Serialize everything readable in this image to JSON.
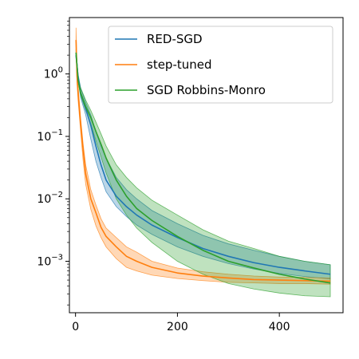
{
  "chart_data": {
    "type": "line",
    "title": "",
    "xlabel": "",
    "ylabel": "",
    "yscale": "log",
    "xlim": [
      -12,
      525
    ],
    "ylim": [
      0.00015,
      8
    ],
    "x_ticks": [
      0,
      200,
      400
    ],
    "x_tick_labels": [
      "0",
      "200",
      "400"
    ],
    "y_ticks": [
      1,
      0.1,
      0.01,
      0.001
    ],
    "y_tick_labels": [
      {
        "base": "10",
        "exp": "0"
      },
      {
        "base": "10",
        "exp": "−1"
      },
      {
        "base": "10",
        "exp": "−2"
      },
      {
        "base": "10",
        "exp": "−3"
      }
    ],
    "grid": false,
    "legend_position": "top-right",
    "series": [
      {
        "name": "RED-SGD",
        "color": "#1f77b4",
        "x": [
          1,
          5,
          10,
          20,
          30,
          40,
          50,
          60,
          80,
          100,
          120,
          150,
          200,
          250,
          300,
          350,
          400,
          450,
          500
        ],
        "mean": [
          2.0,
          0.9,
          0.5,
          0.28,
          0.15,
          0.07,
          0.035,
          0.02,
          0.011,
          0.0075,
          0.0055,
          0.0038,
          0.0024,
          0.0016,
          0.0012,
          0.00095,
          0.0008,
          0.0007,
          0.00062
        ],
        "lower": [
          1.8,
          0.8,
          0.42,
          0.22,
          0.09,
          0.04,
          0.022,
          0.013,
          0.0075,
          0.0052,
          0.0038,
          0.0027,
          0.0017,
          0.0012,
          0.00092,
          0.00075,
          0.00064,
          0.00057,
          0.00052
        ],
        "upper": [
          2.4,
          1.0,
          0.6,
          0.35,
          0.22,
          0.12,
          0.07,
          0.045,
          0.022,
          0.014,
          0.01,
          0.0065,
          0.004,
          0.0026,
          0.0019,
          0.0015,
          0.0012,
          0.001,
          0.00088
        ]
      },
      {
        "name": "step-tuned",
        "color": "#ff7f0e",
        "x": [
          1,
          3,
          5,
          10,
          15,
          20,
          30,
          40,
          50,
          60,
          80,
          100,
          120,
          150,
          200,
          250,
          300,
          350,
          400,
          450,
          500
        ],
        "mean": [
          3.5,
          0.9,
          0.5,
          0.16,
          0.06,
          0.025,
          0.01,
          0.006,
          0.0035,
          0.0025,
          0.0017,
          0.0012,
          0.001,
          0.0008,
          0.00065,
          0.00058,
          0.00054,
          0.00051,
          0.0005,
          0.00049,
          0.00048
        ],
        "lower": [
          2.5,
          0.7,
          0.38,
          0.12,
          0.04,
          0.017,
          0.0068,
          0.0037,
          0.0024,
          0.0017,
          0.0011,
          0.0008,
          0.0007,
          0.0006,
          0.00053,
          0.00049,
          0.00046,
          0.00045,
          0.00044,
          0.00044,
          0.00043
        ],
        "upper": [
          5.5,
          1.2,
          0.65,
          0.2,
          0.075,
          0.035,
          0.014,
          0.008,
          0.0048,
          0.0034,
          0.0024,
          0.0017,
          0.0014,
          0.001,
          0.00078,
          0.00068,
          0.00062,
          0.00058,
          0.00056,
          0.00055,
          0.00054
        ]
      },
      {
        "name": "SGD Robbins-Monro",
        "color": "#2ca02c",
        "x": [
          1,
          5,
          10,
          20,
          30,
          40,
          50,
          60,
          80,
          100,
          120,
          150,
          200,
          250,
          300,
          350,
          400,
          450,
          500
        ],
        "mean": [
          2.2,
          0.8,
          0.5,
          0.3,
          0.2,
          0.12,
          0.075,
          0.045,
          0.02,
          0.011,
          0.007,
          0.0045,
          0.0025,
          0.0015,
          0.001,
          0.00078,
          0.00062,
          0.00052,
          0.00045
        ],
        "lower": [
          2.0,
          0.75,
          0.45,
          0.26,
          0.16,
          0.085,
          0.047,
          0.026,
          0.01,
          0.0055,
          0.0034,
          0.002,
          0.001,
          0.00062,
          0.00044,
          0.00036,
          0.00031,
          0.00028,
          0.00027
        ],
        "upper": [
          2.5,
          0.9,
          0.6,
          0.38,
          0.26,
          0.17,
          0.11,
          0.07,
          0.035,
          0.022,
          0.015,
          0.0095,
          0.0055,
          0.0032,
          0.0021,
          0.0016,
          0.0012,
          0.001,
          0.00088
        ]
      }
    ]
  }
}
